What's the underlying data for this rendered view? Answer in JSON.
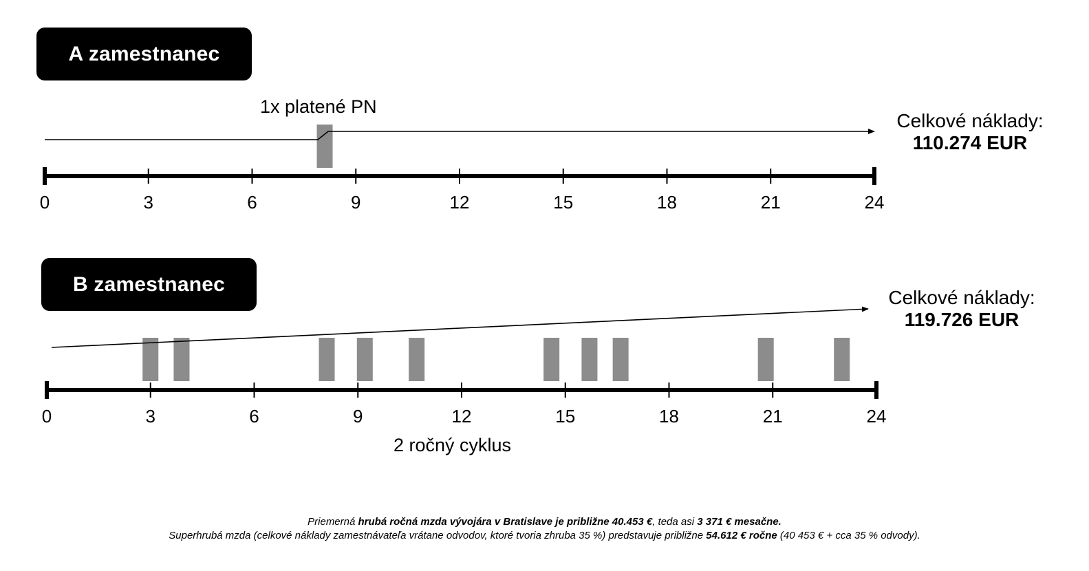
{
  "employee_a": {
    "title": "A zamestnanec",
    "event_label": "1x platené PN",
    "total_label": "Celkové náklady:",
    "total_value": "110.274 EUR",
    "sick_leave_months": [
      8.1
    ],
    "cost_line": [
      [
        0,
        0
      ],
      [
        7.9,
        0
      ],
      [
        8.2,
        0.3
      ],
      [
        24,
        0.3
      ]
    ]
  },
  "employee_b": {
    "title": "B zamestnanec",
    "total_label": "Celkové náklady:",
    "total_value": "119.726 EUR",
    "sick_leave_months": [
      3.0,
      3.9,
      8.1,
      9.2,
      10.7,
      14.6,
      15.7,
      16.6,
      20.8,
      23.0
    ],
    "cycle_label": "2 ročný cyklus"
  },
  "axis": {
    "min": 0,
    "max": 24,
    "ticks": [
      "0",
      "3",
      "6",
      "9",
      "12",
      "15",
      "18",
      "21",
      "24"
    ]
  },
  "footnotes": {
    "line1": [
      {
        "text": "Priemerná ",
        "bold": false
      },
      {
        "text": "hrubá ročná mzda vývojára v Bratislave je približne 40.453 €",
        "bold": true
      },
      {
        "text": ", teda asi ",
        "bold": false
      },
      {
        "text": "3 371 € mesačne.",
        "bold": true
      }
    ],
    "line2": [
      {
        "text": "Superhrubá mzda (celkové náklady zamestnávateľa vrátane odvodov, ktoré tvoria zhruba 35 %) predstavuje približne ",
        "bold": false
      },
      {
        "text": "54.612 € ročne",
        "bold": true
      },
      {
        "text": " (40 453 € + cca 35 % odvody).",
        "bold": false
      }
    ]
  },
  "colors": {
    "sick_leave_block": "#8c8c8c",
    "axis": "#000000",
    "badge": "#000000"
  }
}
